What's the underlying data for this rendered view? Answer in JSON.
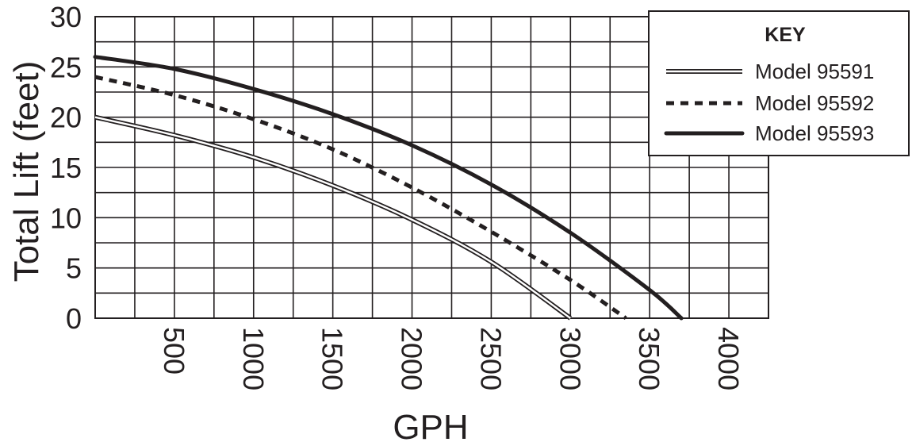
{
  "chart_data": {
    "type": "line",
    "xlabel": "GPH",
    "ylabel": "Total Lift (feet)",
    "xlim": [
      0,
      4250
    ],
    "ylim": [
      0,
      30
    ],
    "x_ticks": [
      "500",
      "1000",
      "1500",
      "2000",
      "2500",
      "3000",
      "3500",
      "4000"
    ],
    "x_tick_values": [
      500,
      1000,
      1500,
      2000,
      2500,
      3000,
      3500,
      4000
    ],
    "y_ticks": [
      "0",
      "5",
      "10",
      "15",
      "20",
      "25",
      "30"
    ],
    "y_tick_values": [
      0,
      5,
      10,
      15,
      20,
      25,
      30
    ],
    "grid": true,
    "legend_title": "KEY",
    "legend_position": "top-right",
    "series": [
      {
        "name": "Model 95591",
        "style": "double",
        "color": "#231f20",
        "x": [
          0,
          500,
          1000,
          1500,
          2000,
          2500,
          3000
        ],
        "y": [
          20,
          18.2,
          16,
          13.2,
          9.8,
          5.6,
          0
        ]
      },
      {
        "name": "Model 95592",
        "style": "dashed",
        "color": "#231f20",
        "x": [
          0,
          500,
          1000,
          1500,
          2000,
          2500,
          3000,
          3350
        ],
        "y": [
          24,
          22.2,
          19.8,
          16.8,
          13,
          8.6,
          3.8,
          0
        ]
      },
      {
        "name": "Model 95593",
        "style": "solid",
        "color": "#231f20",
        "x": [
          0,
          500,
          1000,
          1500,
          2000,
          2500,
          3000,
          3500,
          3700
        ],
        "y": [
          26,
          24.8,
          22.8,
          20.3,
          17.2,
          13.3,
          8.5,
          2.8,
          0
        ]
      }
    ]
  }
}
